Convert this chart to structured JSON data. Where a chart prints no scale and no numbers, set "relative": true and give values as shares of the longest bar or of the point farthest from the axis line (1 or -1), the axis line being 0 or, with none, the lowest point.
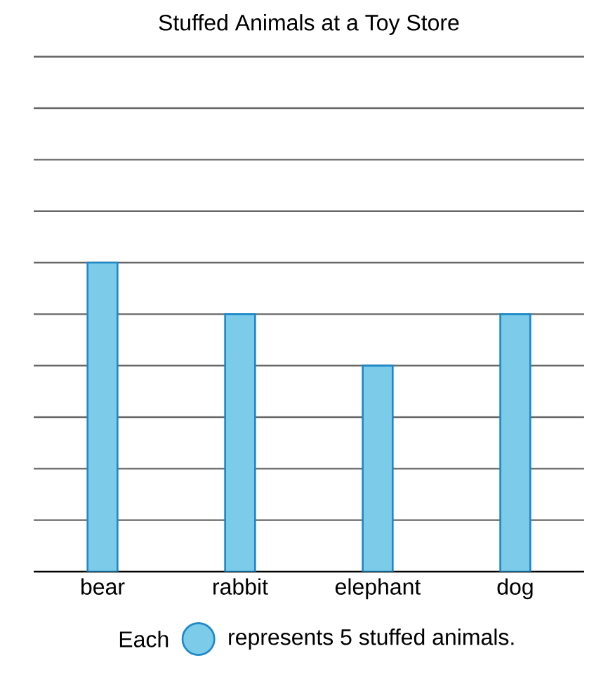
{
  "chart_data": {
    "type": "bar",
    "title": "Stuffed Animals at a Toy Store",
    "categories": [
      "bear",
      "rabbit",
      "elephant",
      "dog"
    ],
    "values": [
      1,
      0.8333,
      0.6667,
      0.8333
    ],
    "relative": true,
    "color": "#7ccbe9",
    "grid": "y",
    "annotations": [
      "Each",
      "represents 5 stuffed animals."
    ]
  }
}
